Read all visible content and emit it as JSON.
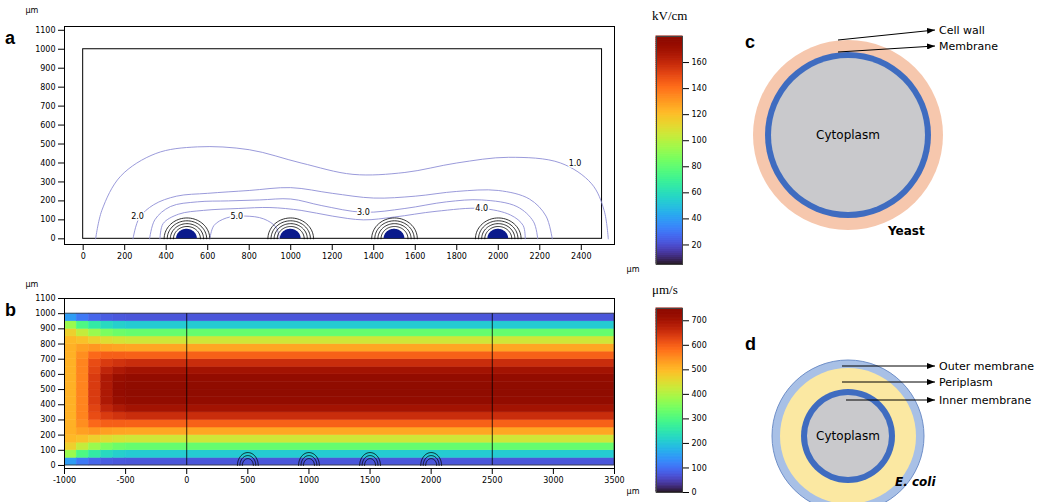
{
  "chart_data": [
    {
      "type": "contour",
      "panel": "a",
      "x_label": "μm",
      "y_label": "μm",
      "xlim": [
        -90,
        2560
      ],
      "xticks": [
        0,
        200,
        400,
        600,
        800,
        1000,
        1200,
        1400,
        1600,
        1800,
        2000,
        2200,
        2400
      ],
      "ylim": [
        -30,
        1120
      ],
      "yticks": [
        0,
        100,
        200,
        300,
        400,
        500,
        600,
        700,
        800,
        900,
        1000,
        1100
      ],
      "channel": {
        "x": [
          0,
          2500
        ],
        "y": [
          0,
          1000
        ]
      },
      "electrodes": {
        "x": [
          500,
          1000,
          1500,
          2000
        ],
        "radius": 50,
        "ring_radii": [
          65,
          80,
          95,
          110
        ]
      },
      "contours": [
        {
          "label": "1.0",
          "level": 1,
          "label_x": 2370,
          "label_y": 395,
          "x": [
            60,
            90,
            180,
            350,
            550,
            800,
            1050,
            1300,
            1550,
            1800,
            2050,
            2300,
            2450,
            2510,
            2530
          ],
          "y": [
            0,
            150,
            330,
            450,
            485,
            470,
            400,
            340,
            350,
            400,
            430,
            400,
            290,
            150,
            0
          ]
        },
        {
          "label": "2.0",
          "level": 2,
          "label_x": 262,
          "label_y": 120,
          "x": [
            240,
            270,
            340,
            450,
            600,
            800,
            1000,
            1200,
            1400,
            1600,
            1800,
            2000,
            2150,
            2230,
            2260
          ],
          "y": [
            0,
            110,
            180,
            225,
            240,
            255,
            270,
            240,
            215,
            225,
            250,
            255,
            210,
            120,
            0
          ]
        },
        {
          "label": "3.0",
          "level": 3,
          "label_x": 1350,
          "label_y": 140,
          "x": [
            320,
            345,
            420,
            550,
            700,
            850,
            1000,
            1150,
            1350,
            1550,
            1750,
            1920,
            2090,
            2170,
            2190
          ],
          "y": [
            0,
            100,
            170,
            195,
            200,
            205,
            210,
            175,
            140,
            160,
            195,
            205,
            170,
            90,
            0
          ]
        },
        {
          "label": "4.0",
          "level": 4,
          "label_x": 1920,
          "label_y": 160,
          "x": [
            370,
            385,
            460,
            580,
            750,
            900,
            1050,
            1200,
            1350,
            1500,
            1700,
            1920,
            2060,
            2120,
            2130
          ],
          "y": [
            0,
            80,
            130,
            150,
            160,
            165,
            150,
            120,
            100,
            115,
            145,
            160,
            125,
            70,
            0
          ]
        },
        {
          "label": "5.0",
          "level": 5,
          "label_x": 740,
          "label_y": 118,
          "x": [
            610,
            630,
            690,
            780,
            870,
            930,
            945
          ],
          "y": [
            0,
            70,
            110,
            120,
            105,
            60,
            0
          ]
        }
      ],
      "colorbar": {
        "title": "kV/cm",
        "range": [
          5,
          180
        ],
        "ticks": [
          20,
          40,
          60,
          80,
          100,
          120,
          140,
          160
        ]
      }
    },
    {
      "type": "heatmap",
      "panel": "b",
      "x_label": "μm",
      "y_label": "μm",
      "xlim": [
        -1000,
        3500
      ],
      "xticks": [
        -1000,
        -500,
        0,
        500,
        1000,
        1500,
        2000,
        2500,
        3000,
        3500
      ],
      "ylim": [
        -20,
        1100
      ],
      "yticks": [
        0,
        100,
        200,
        300,
        400,
        500,
        600,
        700,
        800,
        900,
        1000,
        1100
      ],
      "channel": {
        "x": [
          -1000,
          3500
        ],
        "y": [
          0,
          1000
        ]
      },
      "section_lines": [
        0,
        2500
      ],
      "electrodes": {
        "x": [
          500,
          1000,
          1500,
          2000
        ],
        "ring_radii": [
          45,
          65,
          85
        ]
      },
      "x_edges": [
        -1000,
        -900,
        -800,
        -700,
        -600,
        -500,
        3500
      ],
      "y_edges": [
        0,
        50,
        100,
        150,
        200,
        250,
        300,
        350,
        400,
        450,
        500,
        550,
        600,
        650,
        700,
        750,
        800,
        850,
        900,
        950,
        1000
      ],
      "cells": [
        [
          150,
          380,
          470,
          500,
          510,
          510,
          510,
          510,
          510,
          510,
          510,
          510,
          510,
          510,
          510,
          510,
          500,
          470,
          380,
          150
        ],
        [
          110,
          300,
          420,
          490,
          530,
          550,
          560,
          560,
          560,
          560,
          560,
          560,
          560,
          560,
          550,
          530,
          490,
          420,
          300,
          110
        ],
        [
          90,
          260,
          380,
          470,
          540,
          590,
          620,
          630,
          640,
          640,
          640,
          640,
          630,
          620,
          590,
          540,
          470,
          380,
          260,
          90
        ],
        [
          80,
          230,
          350,
          450,
          530,
          600,
          640,
          670,
          690,
          690,
          690,
          690,
          670,
          640,
          600,
          530,
          450,
          350,
          230,
          80
        ],
        [
          75,
          215,
          335,
          440,
          525,
          600,
          650,
          690,
          720,
          730,
          730,
          720,
          690,
          650,
          600,
          525,
          440,
          335,
          215,
          75
        ],
        [
          73,
          208,
          328,
          433,
          523,
          598,
          658,
          703,
          733,
          748,
          748,
          733,
          703,
          658,
          598,
          523,
          433,
          328,
          208,
          73
        ]
      ],
      "colorbar": {
        "title": "μm/s",
        "range": [
          0,
          750
        ],
        "ticks": [
          0,
          100,
          200,
          300,
          400,
          500,
          600,
          700
        ]
      }
    }
  ],
  "diagrams": [
    {
      "panel": "c",
      "name": "Yeast",
      "center_label": "Cytoplasm",
      "layers": [
        "Cell wall",
        "Membrane"
      ]
    },
    {
      "panel": "d",
      "name": "E. coli",
      "center_label": "Cytoplasm",
      "layers": [
        "Outer membrane",
        "Periplasm",
        "Inner membrane"
      ]
    }
  ]
}
